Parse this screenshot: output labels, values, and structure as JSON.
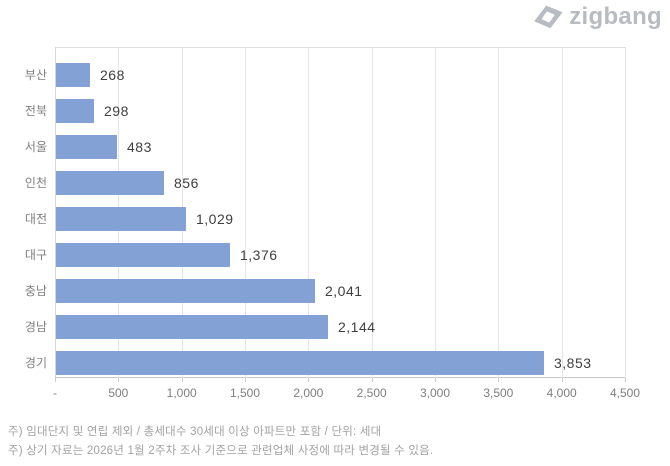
{
  "brand": {
    "name": "zigbang",
    "logo_color": "#b7bbc2"
  },
  "chart_data": {
    "type": "bar",
    "orientation": "horizontal",
    "title": "",
    "categories": [
      "부산",
      "전북",
      "서울",
      "인천",
      "대전",
      "대구",
      "충남",
      "경남",
      "경기"
    ],
    "values": [
      268,
      298,
      483,
      856,
      1029,
      1376,
      2041,
      2144,
      3853
    ],
    "value_labels": [
      "268",
      "298",
      "483",
      "856",
      "1,029",
      "1,376",
      "2,041",
      "2,144",
      "3,853"
    ],
    "x_ticks": [
      "-",
      "500",
      "1,000",
      "1,500",
      "2,000",
      "2,500",
      "3,000",
      "3,500",
      "4,000",
      "4,500"
    ],
    "xlim": [
      0,
      4500
    ],
    "grid": true,
    "legend": "none",
    "bar_color": "#84a1d6",
    "unit": "세대"
  },
  "footnotes": [
    "주) 임대단지 및 연립 제외 / 총세대수 30세대 이상 아파트만 포함 / 단위: 세대",
    "주) 상기 자료는 2026년 1월 2주차 조사 기준으로 관련업체 사정에 따라 변경될 수 있음."
  ]
}
